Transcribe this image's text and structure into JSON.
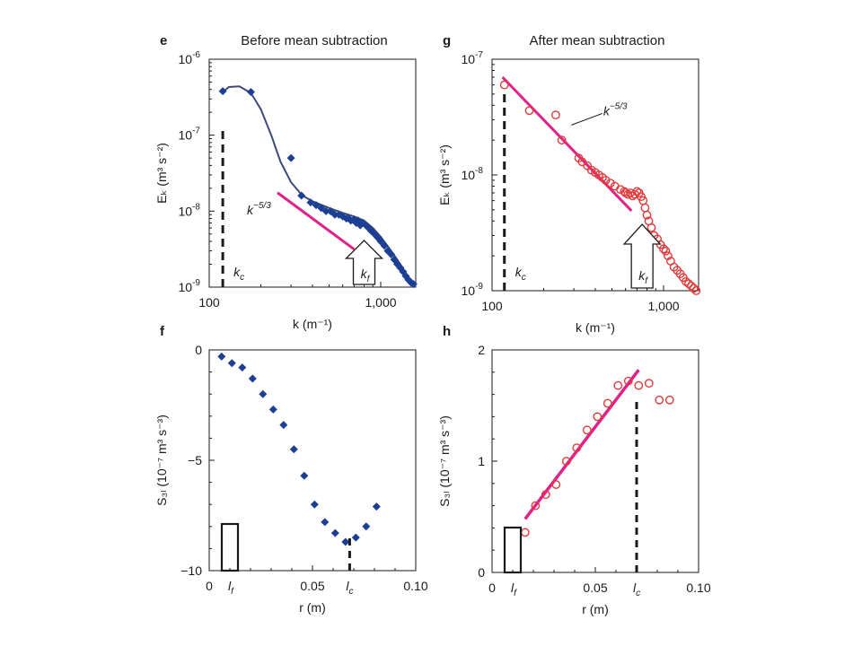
{
  "colors": {
    "blue_series": "#1c3f94",
    "blue_fit": "#3d4a7a",
    "pink_fit": "#e0218a",
    "red_marker": "#e23a3a",
    "axis": "#1a1a1a"
  },
  "chart_data": [
    {
      "panel": "e",
      "type": "scatter",
      "title": "Before mean subtraction",
      "xlabel": "k (m⁻¹)",
      "ylabel": "Eₖ (m³ s⁻²)",
      "xscale": "log",
      "yscale": "log",
      "xlim": [
        100,
        1600
      ],
      "ylim": [
        1e-09,
        1e-06
      ],
      "x_ticks": [
        {
          "v": 100,
          "label": "100"
        },
        {
          "v": 1000,
          "label": "1,000"
        }
      ],
      "y_ticks": [
        {
          "v": 1e-09,
          "b": "10",
          "e": "-9"
        },
        {
          "v": 1e-08,
          "b": "10",
          "e": "-8"
        },
        {
          "v": 1e-07,
          "b": "10",
          "e": "-7"
        },
        {
          "v": 1e-06,
          "b": "10",
          "e": "-6"
        }
      ],
      "marker": "diamond-filled",
      "series": [
        {
          "x": [
            120,
            175,
            300,
            345,
            390,
            420,
            450,
            480,
            510,
            540,
            570,
            600,
            630,
            650,
            670,
            700,
            720,
            740,
            760,
            790,
            820,
            850,
            880,
            920,
            960,
            1000,
            1050,
            1100,
            1150,
            1200,
            1250,
            1300,
            1350,
            1400,
            1450,
            1500,
            1550
          ],
          "y": [
            3.8e-07,
            3.7e-07,
            5e-08,
            1.6e-08,
            1.3e-08,
            1.2e-08,
            1.1e-08,
            1e-08,
            1e-08,
            9e-09,
            9e-09,
            8.5e-09,
            8e-09,
            8e-09,
            7.5e-09,
            7.8e-09,
            7e-09,
            7.5e-09,
            6.5e-09,
            7e-09,
            6.5e-09,
            6e-09,
            5.5e-09,
            5e-09,
            4.5e-09,
            4e-09,
            3.5e-09,
            3e-09,
            2.7e-09,
            2.3e-09,
            2e-09,
            1.8e-09,
            1.6e-09,
            1.4e-09,
            1.25e-09,
            1.15e-09,
            1.1e-09
          ]
        }
      ],
      "fit_curve": {
        "x": [
          118,
          130,
          150,
          175,
          200,
          230,
          260,
          300,
          350,
          400,
          500,
          600,
          700,
          800,
          900,
          1000,
          1150,
          1300,
          1450,
          1600
        ],
        "y": [
          3.6e-07,
          4.3e-07,
          4.4e-07,
          3.6e-07,
          2.2e-07,
          1e-07,
          4.5e-08,
          2.4e-08,
          1.6e-08,
          1.35e-08,
          1.1e-08,
          9.5e-09,
          8.5e-09,
          7.5e-09,
          6e-09,
          4.6e-09,
          3e-09,
          2e-09,
          1.35e-09,
          1e-09
        ]
      },
      "reference_line": {
        "label_base": "k",
        "label_exp": "−5/3",
        "x": [
          250,
          700
        ]
      },
      "k_c": {
        "value": 120,
        "label_base": "k",
        "label_sub": "c"
      },
      "k_f": {
        "value": 800,
        "label_base": "k",
        "label_sub": "f"
      }
    },
    {
      "panel": "g",
      "type": "scatter",
      "title": "After mean subtraction",
      "xlabel": "k (m⁻¹)",
      "ylabel": "Eₖ (m³ s⁻²)",
      "xscale": "log",
      "yscale": "log",
      "xlim": [
        100,
        1600
      ],
      "ylim": [
        1e-09,
        1e-07
      ],
      "x_ticks": [
        {
          "v": 100,
          "label": "100"
        },
        {
          "v": 1000,
          "label": "1,000"
        }
      ],
      "y_ticks": [
        {
          "v": 1e-09,
          "b": "10",
          "e": "-9"
        },
        {
          "v": 1e-08,
          "b": "10",
          "e": "-8"
        },
        {
          "v": 1e-07,
          "b": "10",
          "e": "-7"
        }
      ],
      "marker": "circle-open",
      "series": [
        {
          "x": [
            118,
            165,
            235,
            255,
            320,
            335,
            360,
            380,
            400,
            420,
            440,
            460,
            490,
            520,
            560,
            590,
            600,
            620,
            640,
            660,
            680,
            700,
            720,
            740,
            760,
            780,
            800,
            820,
            850,
            880,
            920,
            960,
            1000,
            1030,
            1060,
            1100,
            1150,
            1200,
            1250,
            1300,
            1350,
            1400,
            1450,
            1500,
            1550
          ],
          "y": [
            6e-08,
            3.6e-08,
            3.3e-08,
            2e-08,
            1.4e-08,
            1.3e-08,
            1.2e-08,
            1.1e-08,
            1.05e-08,
            1e-08,
            9.5e-09,
            9e-09,
            8.5e-09,
            8e-09,
            7.5e-09,
            7.2e-09,
            7e-09,
            6.8e-09,
            7e-09,
            6.6e-09,
            6.8e-09,
            7.2e-09,
            7e-09,
            6.5e-09,
            6e-09,
            5.2e-09,
            4.5e-09,
            4e-09,
            3.5e-09,
            3e-09,
            2.8e-09,
            2.5e-09,
            2.3e-09,
            2.2e-09,
            2e-09,
            1.8e-09,
            1.6e-09,
            1.5e-09,
            1.4e-09,
            1.3e-09,
            1.2e-09,
            1.15e-09,
            1.1e-09,
            1.05e-09,
            1e-09
          ]
        }
      ],
      "fit_line": {
        "x": [
          115,
          650
        ],
        "y": [
          7e-08,
          4.9e-09
        ]
      },
      "reference_line": {
        "label_base": "k",
        "label_exp": "−5/3"
      },
      "k_c": {
        "value": 118,
        "label_base": "k",
        "label_sub": "c"
      },
      "k_f": {
        "value": 750,
        "label_base": "k",
        "label_sub": "f"
      }
    },
    {
      "panel": "f",
      "type": "scatter",
      "title": "",
      "xlabel": "r (m)",
      "ylabel": "S₃ₗ (10⁻⁷ m³ s⁻³)",
      "xscale": "linear",
      "yscale": "linear",
      "xlim": [
        0,
        0.1
      ],
      "ylim": [
        -10,
        0
      ],
      "x_ticks": [
        {
          "v": 0,
          "label": "0"
        },
        {
          "v": 0.05,
          "label": "0.05"
        },
        {
          "v": 0.1,
          "label": "0.10"
        }
      ],
      "y_ticks": [
        {
          "v": 0,
          "label": "0"
        },
        {
          "v": -5,
          "label": "−5"
        },
        {
          "v": -10,
          "label": "−10"
        }
      ],
      "marker": "diamond-filled",
      "series": [
        {
          "x": [
            0.006,
            0.011,
            0.016,
            0.021,
            0.026,
            0.031,
            0.036,
            0.041,
            0.046,
            0.051,
            0.056,
            0.061,
            0.066,
            0.071,
            0.076,
            0.081
          ],
          "y": [
            -0.3,
            -0.6,
            -0.8,
            -1.3,
            -2.0,
            -2.7,
            -3.4,
            -4.5,
            -5.7,
            -7.0,
            -7.8,
            -8.3,
            -8.7,
            -8.5,
            -8.0,
            -7.1
          ]
        }
      ],
      "l_c": {
        "value": 0.068,
        "label_base": "l",
        "label_sub": "c"
      },
      "l_f": {
        "value": 0.01,
        "label_base": "l",
        "label_sub": "f"
      }
    },
    {
      "panel": "h",
      "type": "scatter",
      "title": "",
      "xlabel": "r (m)",
      "ylabel": "S₃ₗ (10⁻⁷ m³ s⁻³)",
      "xscale": "linear",
      "yscale": "linear",
      "xlim": [
        0,
        0.1
      ],
      "ylim": [
        0,
        2
      ],
      "x_ticks": [
        {
          "v": 0,
          "label": "0"
        },
        {
          "v": 0.05,
          "label": "0.05"
        },
        {
          "v": 0.1,
          "label": "0.10"
        }
      ],
      "y_ticks": [
        {
          "v": 0,
          "label": "0"
        },
        {
          "v": 1,
          "label": "1"
        },
        {
          "v": 2,
          "label": "2"
        }
      ],
      "marker": "circle-open",
      "series": [
        {
          "x": [
            0.016,
            0.021,
            0.026,
            0.031,
            0.036,
            0.041,
            0.046,
            0.051,
            0.056,
            0.061,
            0.066,
            0.071,
            0.076,
            0.081,
            0.086
          ],
          "y": [
            0.36,
            0.6,
            0.7,
            0.79,
            1.0,
            1.12,
            1.28,
            1.4,
            1.52,
            1.68,
            1.72,
            1.68,
            1.7,
            1.55,
            1.55
          ]
        }
      ],
      "fit_line": {
        "x": [
          0.016,
          0.071
        ],
        "y": [
          0.48,
          1.82
        ]
      },
      "l_c": {
        "value": 0.07,
        "label_base": "l",
        "label_sub": "c"
      },
      "l_f": {
        "value": 0.01,
        "label_base": "l",
        "label_sub": "f"
      }
    }
  ]
}
